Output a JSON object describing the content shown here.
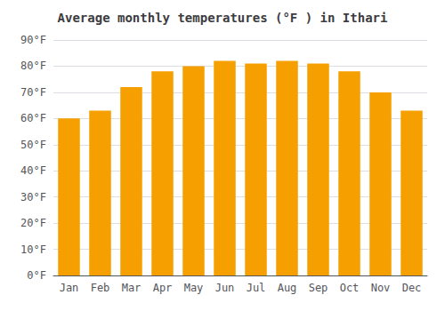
{
  "chart_data": {
    "type": "bar",
    "title": "Average monthly temperatures (°F ) in Ithari",
    "categories": [
      "Jan",
      "Feb",
      "Mar",
      "Apr",
      "May",
      "Jun",
      "Jul",
      "Aug",
      "Sep",
      "Oct",
      "Nov",
      "Dec"
    ],
    "values": [
      60,
      63,
      72,
      78,
      80,
      82,
      81,
      82,
      81,
      78,
      70,
      63
    ],
    "color": "#F5A000",
    "ylim": [
      0,
      90
    ],
    "yticks": [
      {
        "value": 0,
        "label": "0°F"
      },
      {
        "value": 10,
        "label": "10°F"
      },
      {
        "value": 20,
        "label": "20°F"
      },
      {
        "value": 30,
        "label": "30°F"
      },
      {
        "value": 40,
        "label": "40°F"
      },
      {
        "value": 50,
        "label": "50°F"
      },
      {
        "value": 60,
        "label": "60°F"
      },
      {
        "value": 70,
        "label": "70°F"
      },
      {
        "value": 80,
        "label": "80°F"
      },
      {
        "value": 90,
        "label": "90°F"
      }
    ],
    "grid": true
  }
}
